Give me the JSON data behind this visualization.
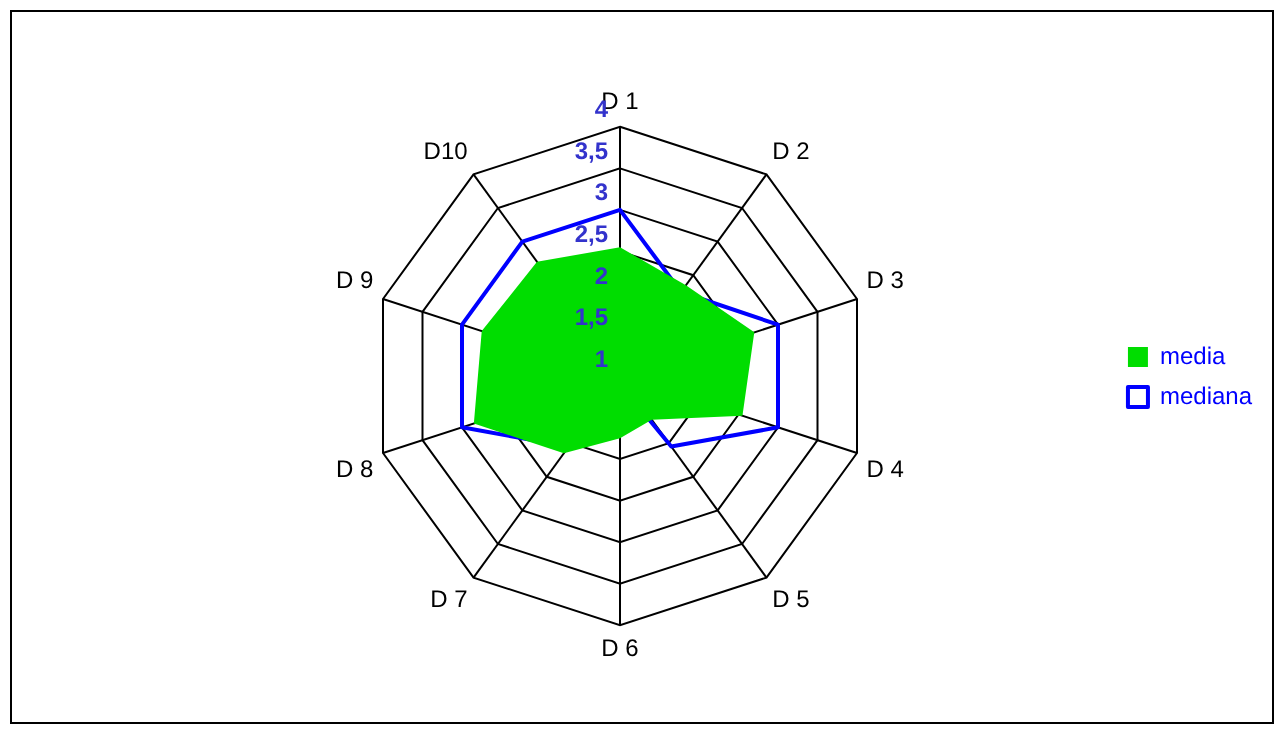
{
  "chart_data": {
    "type": "radar",
    "categories": [
      "D 1",
      "D 2",
      "D 3",
      "D 4",
      "D 5",
      "D 6",
      "D 7",
      "D 8",
      "D 9",
      "D10"
    ],
    "series": [
      {
        "name": "media",
        "color": "#00dd00",
        "type": "area",
        "values": [
          2.55,
          2.35,
          2.7,
          2.55,
          1.65,
          1.75,
          2.15,
          2.85,
          2.75,
          2.7
        ]
      },
      {
        "name": "mediana",
        "color": "#0000ff",
        "values": [
          3,
          2.25,
          3,
          3,
          2.05,
          1.1,
          2.05,
          3,
          3,
          3
        ]
      }
    ],
    "ylim": [
      1,
      4
    ],
    "yticks": [
      {
        "value": 1,
        "label": "1"
      },
      {
        "value": 1.5,
        "label": "1,5"
      },
      {
        "value": 2,
        "label": "2"
      },
      {
        "value": 2.5,
        "label": "2,5"
      },
      {
        "value": 3,
        "label": "3"
      },
      {
        "value": 3.5,
        "label": "3,5"
      },
      {
        "value": 4,
        "label": "4"
      }
    ],
    "grid": true,
    "legend": "right",
    "marker": "none"
  }
}
